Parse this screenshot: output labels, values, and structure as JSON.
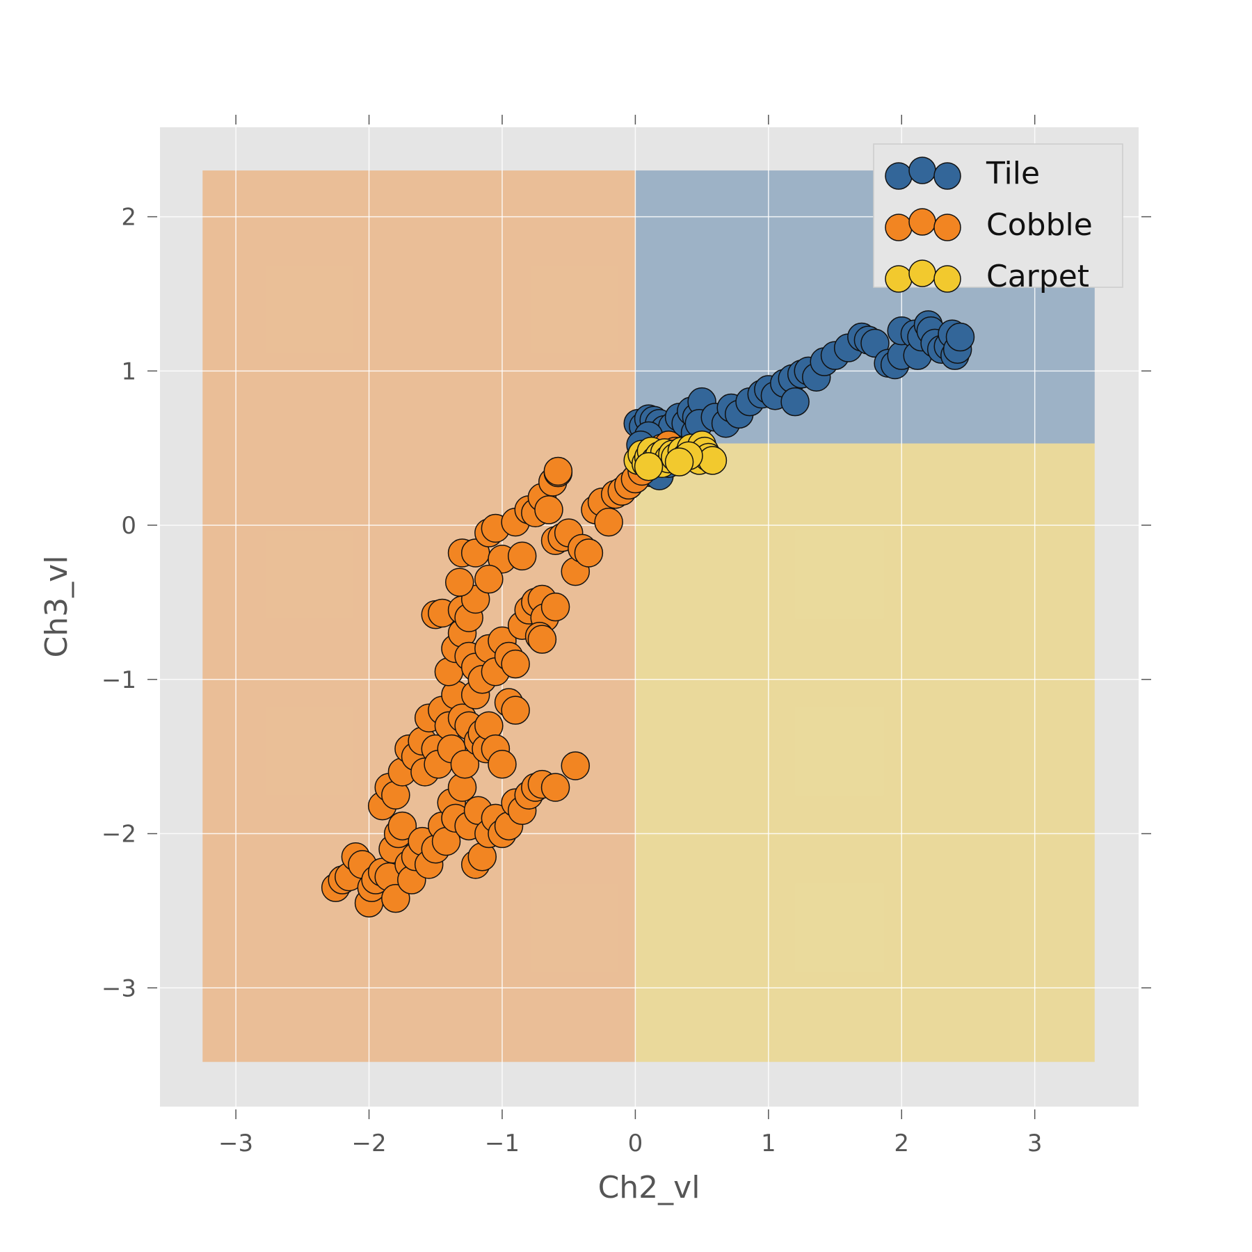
{
  "chart_data": {
    "type": "scatter",
    "title": "",
    "xlabel": "Ch2_vl",
    "ylabel": "Ch3_vl",
    "xlim": [
      -3.57,
      3.78
    ],
    "ylim": [
      -3.77,
      2.58
    ],
    "xticks": [
      -3,
      -2,
      -1,
      0,
      1,
      2,
      3
    ],
    "yticks": [
      -3,
      -2,
      -1,
      0,
      1,
      2
    ],
    "xtick_labels": [
      "−3",
      "−2",
      "−1",
      "0",
      "1",
      "2",
      "3"
    ],
    "ytick_labels": [
      "−3",
      "−2",
      "−1",
      "0",
      "1",
      "2"
    ],
    "grid": true,
    "legend_position": "top-right",
    "background": "#e5e5e5",
    "decision_regions": [
      {
        "class": "Cobble",
        "color": "#f28522",
        "x": [
          -3.25,
          0
        ],
        "y": [
          -3.48,
          2.3
        ]
      },
      {
        "class": "Tile",
        "color": "#336699",
        "x": [
          0,
          3.45
        ],
        "y": [
          0.53,
          2.3
        ]
      },
      {
        "class": "Carpet",
        "color": "#f2c92e",
        "x": [
          0,
          3.45
        ],
        "y": [
          -3.48,
          0.53
        ]
      }
    ],
    "series": [
      {
        "name": "Tile",
        "color": "#336699",
        "points": [
          [
            0.02,
            0.66
          ],
          [
            0.06,
            0.64
          ],
          [
            0.1,
            0.69
          ],
          [
            0.14,
            0.68
          ],
          [
            0.18,
            0.66
          ],
          [
            0.22,
            0.62
          ],
          [
            0.28,
            0.64
          ],
          [
            0.33,
            0.7
          ],
          [
            0.38,
            0.66
          ],
          [
            0.42,
            0.74
          ],
          [
            0.46,
            0.7
          ],
          [
            0.5,
            0.8
          ],
          [
            0.45,
            0.6
          ],
          [
            0.48,
            0.66
          ],
          [
            0.6,
            0.7
          ],
          [
            0.68,
            0.66
          ],
          [
            0.72,
            0.76
          ],
          [
            0.78,
            0.72
          ],
          [
            0.86,
            0.8
          ],
          [
            0.95,
            0.85
          ],
          [
            1.0,
            0.88
          ],
          [
            1.05,
            0.84
          ],
          [
            1.12,
            0.92
          ],
          [
            1.18,
            0.95
          ],
          [
            1.2,
            0.8
          ],
          [
            1.25,
            0.98
          ],
          [
            1.3,
            1.0
          ],
          [
            1.36,
            0.96
          ],
          [
            1.42,
            1.06
          ],
          [
            1.5,
            1.1
          ],
          [
            1.6,
            1.15
          ],
          [
            1.7,
            1.22
          ],
          [
            1.75,
            1.2
          ],
          [
            1.8,
            1.18
          ],
          [
            1.9,
            1.05
          ],
          [
            1.95,
            1.04
          ],
          [
            2.0,
            1.1
          ],
          [
            2.0,
            1.26
          ],
          [
            2.1,
            1.24
          ],
          [
            2.12,
            1.1
          ],
          [
            2.15,
            1.22
          ],
          [
            2.2,
            1.3
          ],
          [
            2.22,
            1.26
          ],
          [
            2.25,
            1.18
          ],
          [
            2.3,
            1.14
          ],
          [
            2.35,
            1.16
          ],
          [
            2.38,
            1.24
          ],
          [
            2.4,
            1.1
          ],
          [
            2.42,
            1.14
          ],
          [
            2.44,
            1.22
          ],
          [
            0.12,
            0.34
          ],
          [
            0.18,
            0.32
          ],
          [
            0.25,
            0.4
          ],
          [
            0.32,
            0.46
          ],
          [
            0.1,
            0.58
          ],
          [
            0.04,
            0.52
          ]
        ]
      },
      {
        "name": "Cobble",
        "color": "#f28522",
        "points": [
          [
            -2.25,
            -2.35
          ],
          [
            -2.2,
            -2.3
          ],
          [
            -2.15,
            -2.28
          ],
          [
            -2.1,
            -2.15
          ],
          [
            -2.05,
            -2.2
          ],
          [
            -2.0,
            -2.45
          ],
          [
            -1.98,
            -2.35
          ],
          [
            -1.95,
            -2.3
          ],
          [
            -1.9,
            -2.25
          ],
          [
            -1.85,
            -2.28
          ],
          [
            -1.82,
            -2.1
          ],
          [
            -1.8,
            -2.42
          ],
          [
            -1.78,
            -2.0
          ],
          [
            -1.75,
            -1.95
          ],
          [
            -1.7,
            -2.2
          ],
          [
            -1.68,
            -2.3
          ],
          [
            -1.65,
            -2.15
          ],
          [
            -1.6,
            -2.05
          ],
          [
            -1.55,
            -2.2
          ],
          [
            -1.5,
            -2.1
          ],
          [
            -1.45,
            -1.95
          ],
          [
            -1.42,
            -2.05
          ],
          [
            -1.38,
            -1.8
          ],
          [
            -1.35,
            -1.9
          ],
          [
            -1.3,
            -1.7
          ],
          [
            -1.25,
            -1.95
          ],
          [
            -1.2,
            -2.2
          ],
          [
            -1.18,
            -1.85
          ],
          [
            -1.15,
            -2.15
          ],
          [
            -1.1,
            -2.0
          ],
          [
            -1.05,
            -1.9
          ],
          [
            -1.0,
            -2.0
          ],
          [
            -0.95,
            -1.95
          ],
          [
            -0.9,
            -1.8
          ],
          [
            -0.85,
            -1.85
          ],
          [
            -0.8,
            -1.75
          ],
          [
            -0.75,
            -1.7
          ],
          [
            -0.7,
            -1.68
          ],
          [
            -0.6,
            -1.7
          ],
          [
            -0.45,
            -1.56
          ],
          [
            -1.9,
            -1.82
          ],
          [
            -1.85,
            -1.7
          ],
          [
            -1.8,
            -1.75
          ],
          [
            -1.75,
            -1.6
          ],
          [
            -1.7,
            -1.45
          ],
          [
            -1.65,
            -1.5
          ],
          [
            -1.6,
            -1.4
          ],
          [
            -1.58,
            -1.6
          ],
          [
            -1.55,
            -1.25
          ],
          [
            -1.5,
            -1.45
          ],
          [
            -1.48,
            -1.55
          ],
          [
            -1.45,
            -1.2
          ],
          [
            -1.4,
            -1.3
          ],
          [
            -1.38,
            -1.45
          ],
          [
            -1.35,
            -1.1
          ],
          [
            -1.3,
            -1.25
          ],
          [
            -1.28,
            -1.55
          ],
          [
            -1.25,
            -1.3
          ],
          [
            -1.2,
            -1.1
          ],
          [
            -1.18,
            -1.4
          ],
          [
            -1.15,
            -1.35
          ],
          [
            -1.12,
            -1.45
          ],
          [
            -1.1,
            -1.3
          ],
          [
            -1.05,
            -1.45
          ],
          [
            -1.0,
            -1.55
          ],
          [
            -0.95,
            -1.15
          ],
          [
            -0.9,
            -1.2
          ],
          [
            -1.4,
            -0.95
          ],
          [
            -1.35,
            -0.8
          ],
          [
            -1.3,
            -0.7
          ],
          [
            -1.25,
            -0.85
          ],
          [
            -1.2,
            -0.92
          ],
          [
            -1.15,
            -1.0
          ],
          [
            -1.1,
            -0.8
          ],
          [
            -1.05,
            -0.95
          ],
          [
            -1.0,
            -0.75
          ],
          [
            -0.95,
            -0.85
          ],
          [
            -0.9,
            -0.9
          ],
          [
            -0.85,
            -0.65
          ],
          [
            -0.8,
            -0.55
          ],
          [
            -0.75,
            -0.5
          ],
          [
            -0.7,
            -0.48
          ],
          [
            -0.68,
            -0.6
          ],
          [
            -0.72,
            -0.72
          ],
          [
            -0.6,
            -0.53
          ],
          [
            -1.5,
            -0.58
          ],
          [
            -1.45,
            -0.57
          ],
          [
            -1.3,
            -0.55
          ],
          [
            -1.25,
            -0.6
          ],
          [
            -1.2,
            -0.48
          ],
          [
            -1.32,
            -0.37
          ],
          [
            -1.3,
            -0.18
          ],
          [
            -1.2,
            -0.18
          ],
          [
            -1.1,
            -0.05
          ],
          [
            -1.05,
            -0.02
          ],
          [
            -1.0,
            -0.22
          ],
          [
            -1.1,
            -0.35
          ],
          [
            -0.9,
            0.02
          ],
          [
            -0.85,
            -0.2
          ],
          [
            -0.8,
            0.1
          ],
          [
            -0.75,
            0.08
          ],
          [
            -0.7,
            0.18
          ],
          [
            -0.65,
            0.1
          ],
          [
            -0.62,
            0.28
          ],
          [
            -0.58,
            0.34
          ],
          [
            -0.6,
            -0.1
          ],
          [
            -0.55,
            -0.08
          ],
          [
            -0.5,
            -0.05
          ],
          [
            -0.45,
            -0.3
          ],
          [
            -0.4,
            -0.15
          ],
          [
            -0.35,
            -0.18
          ],
          [
            -0.3,
            0.1
          ],
          [
            -0.25,
            0.15
          ],
          [
            -0.2,
            0.02
          ],
          [
            -0.15,
            0.2
          ],
          [
            -0.1,
            0.22
          ],
          [
            -0.05,
            0.26
          ],
          [
            0.0,
            0.3
          ],
          [
            0.05,
            0.35
          ],
          [
            0.1,
            0.4
          ],
          [
            0.15,
            0.45
          ],
          [
            0.2,
            0.5
          ],
          [
            0.25,
            0.52
          ],
          [
            0.3,
            0.48
          ],
          [
            -0.58,
            0.35
          ],
          [
            -0.7,
            -0.74
          ]
        ]
      },
      {
        "name": "Carpet",
        "color": "#f2c92e",
        "points": [
          [
            0.02,
            0.42
          ],
          [
            0.05,
            0.46
          ],
          [
            0.08,
            0.4
          ],
          [
            0.1,
            0.44
          ],
          [
            0.12,
            0.48
          ],
          [
            0.15,
            0.42
          ],
          [
            0.18,
            0.45
          ],
          [
            0.2,
            0.4
          ],
          [
            0.22,
            0.47
          ],
          [
            0.25,
            0.43
          ],
          [
            0.28,
            0.46
          ],
          [
            0.3,
            0.44
          ],
          [
            0.35,
            0.48
          ],
          [
            0.38,
            0.44
          ],
          [
            0.42,
            0.5
          ],
          [
            0.45,
            0.46
          ],
          [
            0.48,
            0.42
          ],
          [
            0.5,
            0.52
          ],
          [
            0.52,
            0.48
          ],
          [
            0.55,
            0.44
          ],
          [
            0.58,
            0.42
          ],
          [
            0.4,
            0.45
          ],
          [
            0.33,
            0.41
          ],
          [
            0.1,
            0.38
          ]
        ]
      }
    ]
  }
}
